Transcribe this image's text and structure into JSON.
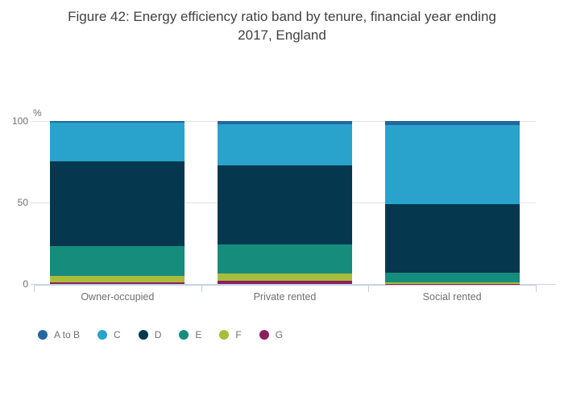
{
  "title": {
    "line1": "Figure 42: Energy efficiency ratio band by tenure, financial year ending",
    "line2": "2017, England"
  },
  "chart_data": {
    "type": "bar",
    "stacked": true,
    "orientation": "vertical",
    "unit_label": "%",
    "categories": [
      "Owner-occupied",
      "Private rented",
      "Social rented"
    ],
    "series": [
      {
        "name": "A to B",
        "color": "#2466a0",
        "values": [
          1.2,
          2.0,
          2.5
        ]
      },
      {
        "name": "C",
        "color": "#29a3cc",
        "values": [
          23.6,
          25.4,
          48.7
        ]
      },
      {
        "name": "D",
        "color": "#05384f",
        "values": [
          52.0,
          48.3,
          42.0
        ]
      },
      {
        "name": "E",
        "color": "#168c7d",
        "values": [
          18.2,
          17.8,
          6.0
        ]
      },
      {
        "name": "F",
        "color": "#a9bd3b",
        "values": [
          4.0,
          4.5,
          0.7
        ]
      },
      {
        "name": "G",
        "color": "#8a1f5e",
        "values": [
          1.0,
          2.0,
          0.1
        ]
      }
    ],
    "stack_order_bottom_to_top": [
      "G",
      "F",
      "E",
      "D",
      "C",
      "A to B"
    ],
    "y_axis": {
      "ticks": [
        0,
        50,
        100
      ],
      "range": [
        0,
        100
      ]
    },
    "y_tick_labels": [
      "100",
      "50",
      "0"
    ],
    "grid": true,
    "legend_position": "bottom"
  }
}
